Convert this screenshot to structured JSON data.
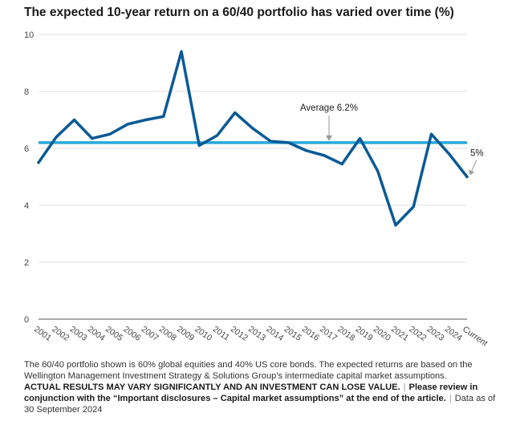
{
  "chart_data": {
    "type": "line",
    "title": "The expected 10-year return on a 60/40 portfolio has varied over time (%)",
    "categories": [
      "2001",
      "2002",
      "2003",
      "2004",
      "2005",
      "2006",
      "2007",
      "2008",
      "2009",
      "2010",
      "2011",
      "2012",
      "2013",
      "2014",
      "2015",
      "2016",
      "2017",
      "2018",
      "2019",
      "2020",
      "2021",
      "2022",
      "2023",
      "2024",
      "Current"
    ],
    "series": [
      {
        "name": "Expected 10-year return",
        "color": "#0a5a96",
        "values": [
          5.5,
          6.4,
          7.0,
          6.35,
          6.5,
          6.85,
          7.0,
          7.12,
          9.4,
          6.1,
          6.45,
          7.25,
          6.7,
          6.25,
          6.2,
          5.92,
          5.75,
          5.45,
          6.35,
          5.2,
          3.3,
          3.95,
          6.5,
          5.8,
          5.0
        ]
      }
    ],
    "average": {
      "value": 6.2,
      "label": "Average 6.2%",
      "color": "#27a8d8"
    },
    "annotation": {
      "label": "5%"
    },
    "ylim": [
      0,
      10
    ],
    "yticks": [
      0,
      2,
      4,
      6,
      8,
      10
    ],
    "grid": true,
    "xlabel": "",
    "ylabel": ""
  },
  "footnote": {
    "text1": "The 60/40 portfolio shown is 60% global equities and 40% US core bonds. The expected returns are based on the Wellington Management Investment Strategy & Solutions Group’s intermediate capital market assumptions.",
    "bold1": "ACTUAL RESULTS MAY VARY SIGNIFICANTLY AND AN INVESTMENT CAN LOSE VALUE.",
    "sep": "|",
    "bold2": "Please review in conjunction with the “Important disclosures – Capital market assumptions” at the end of the article.",
    "text2": "Data as of 30 September 2024"
  }
}
